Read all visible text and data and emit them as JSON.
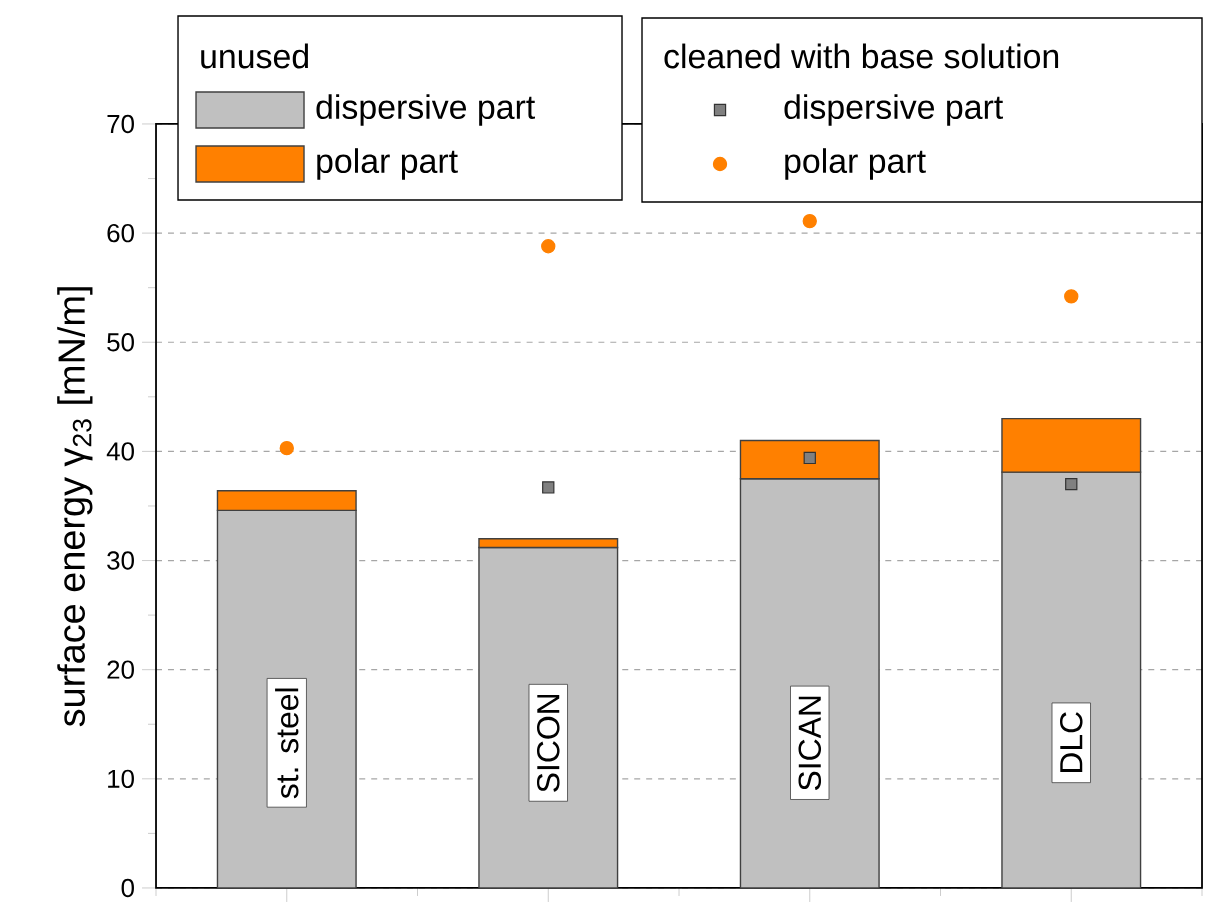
{
  "chart_data": {
    "type": "bar",
    "stacked": true,
    "ylabel": "surface energy γ$_{23}$ [mN/m]",
    "legend_title": "unused",
    "annotations": [
      "cleaned with base solution"
    ],
    "categories": [
      "st. steel",
      "SICON",
      "SICAN",
      "DLC"
    ],
    "series": [
      {
        "name": "dispersive part",
        "color": "#c0c0c0",
        "values": [
          34.6,
          31.2,
          37.5,
          38.1
        ]
      },
      {
        "name": "polar part",
        "color": "#ff8000",
        "values": [
          1.8,
          0.8,
          3.5,
          4.9
        ]
      },
      {
        "name": "dispersive part",
        "type": "scatter",
        "marker": "square",
        "color": "#808080",
        "x": [
          "st. steel",
          "SICON",
          "SICAN",
          "DLC"
        ],
        "values": [
          null,
          36.7,
          39.4,
          37.0
        ]
      },
      {
        "name": "polar part",
        "type": "scatter",
        "marker": "circle",
        "color": "#ff8000",
        "x": [
          "st. steel",
          "SICON",
          "SICAN",
          "DLC"
        ],
        "values": [
          40.3,
          58.8,
          61.1,
          54.2
        ]
      }
    ],
    "ylim": [
      0,
      70
    ],
    "yticks": [
      0,
      10,
      20,
      30,
      40,
      50,
      60,
      70
    ],
    "grid": "y",
    "legend": "top"
  }
}
